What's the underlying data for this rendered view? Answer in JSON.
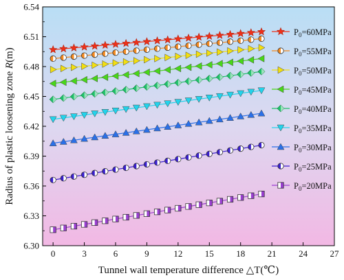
{
  "chart_data": {
    "type": "line",
    "xlabel": "Tunnel wall temperature difference △T(℃)",
    "ylabel_prefix": "Radius of plastic loosening zone ",
    "ylabel_var": "R",
    "ylabel_suffix": "(m)",
    "xlim": [
      -1,
      27
    ],
    "ylim": [
      6.3,
      6.54
    ],
    "x_ticks": [
      0,
      3,
      6,
      9,
      12,
      15,
      18,
      21,
      24,
      27
    ],
    "y_ticks": [
      6.3,
      6.33,
      6.36,
      6.39,
      6.42,
      6.45,
      6.48,
      6.51,
      6.54
    ],
    "x": [
      0,
      1,
      2,
      3,
      4,
      5,
      6,
      7,
      8,
      9,
      10,
      11,
      12,
      13,
      14,
      15,
      16,
      17,
      18,
      19,
      20
    ],
    "grid": false,
    "legend_position": "right",
    "background": "vertical gradient from light blue (top) to light pink (bottom)",
    "series": [
      {
        "name": "P0=60MPa",
        "label_base": "P",
        "label_sub": "0",
        "label_rest": "=60MPa",
        "color": "#f03018",
        "marker": "star",
        "y0": 6.497,
        "y1": 6.515
      },
      {
        "name": "P0=55MPa",
        "label_base": "P",
        "label_sub": "0",
        "label_rest": "=55MPa",
        "color": "#f58a1f",
        "marker": "half-circle",
        "y0": 6.488,
        "y1": 6.508
      },
      {
        "name": "P0=50MPa",
        "label_base": "P",
        "label_sub": "0",
        "label_rest": "=50MPa",
        "color": "#f2df10",
        "marker": "triangle-right",
        "y0": 6.477,
        "y1": 6.499
      },
      {
        "name": "P0=45MPa",
        "label_base": "P",
        "label_sub": "0",
        "label_rest": "=45MPa",
        "color": "#48d818",
        "marker": "triangle-left",
        "y0": 6.463,
        "y1": 6.488
      },
      {
        "name": "P0=40MPa",
        "label_base": "P",
        "label_sub": "0",
        "label_rest": "=40MPa",
        "color": "#1ec26a",
        "marker": "diamond",
        "y0": 6.447,
        "y1": 6.475
      },
      {
        "name": "P0=35MPa",
        "label_base": "P",
        "label_sub": "0",
        "label_rest": "=35MPa",
        "color": "#22d4ec",
        "marker": "triangle-down",
        "y0": 6.427,
        "y1": 6.456
      },
      {
        "name": "P0=30MPa",
        "label_base": "P",
        "label_sub": "0",
        "label_rest": "=30MPa",
        "color": "#2a70e8",
        "marker": "triangle-up",
        "y0": 6.403,
        "y1": 6.433
      },
      {
        "name": "P0=25MPa",
        "label_base": "P",
        "label_sub": "0",
        "label_rest": "=25MPa",
        "color": "#3a1fcf",
        "marker": "half-circle",
        "y0": 6.366,
        "y1": 6.401
      },
      {
        "name": "P0=20MPa",
        "label_base": "P",
        "label_sub": "0",
        "label_rest": "=20MPa",
        "color": "#9a3fd0",
        "marker": "half-square",
        "y0": 6.316,
        "y1": 6.352
      }
    ]
  }
}
